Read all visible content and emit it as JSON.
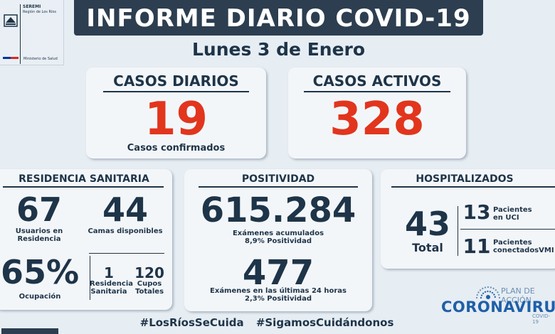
{
  "logo": {
    "seremi": "SEREMI",
    "region": "Región de Los Ríos",
    "ministry": "Ministerio de Salud"
  },
  "header": {
    "title": "INFORME DIARIO COVID-19",
    "date": "Lunes 3 de Enero"
  },
  "daily": {
    "label": "CASOS DIARIOS",
    "value": "19",
    "sub": "Casos confirmados"
  },
  "active": {
    "label": "CASOS ACTIVOS",
    "value": "328"
  },
  "residencia": {
    "title": "RESIDENCIA SANITARIA",
    "users_value": "67",
    "users_label": "Usuarios en Residencia",
    "beds_value": "44",
    "beds_label": "Camas disponibles",
    "occupancy_value": "65%",
    "occupancy_label": "Ocupación",
    "count_value": "1",
    "count_label": "Residencia Sanitaria",
    "cupos_value": "120",
    "cupos_label": "Cupos Totales"
  },
  "positividad": {
    "title": "POSITIVIDAD",
    "exams_value": "615.284",
    "exams_label_1": "Exámenes acumulados",
    "exams_label_2": "8,9% Positividad",
    "last24_value": "477",
    "last24_label_1": "Exámenes en las últimas 24 horas",
    "last24_label_2": "2,3% Positividad"
  },
  "hospitalizados": {
    "title": "HOSPITALIZADOS",
    "total_value": "43",
    "total_label": "Total",
    "uci_value": "13",
    "uci_label_1": "Pacientes",
    "uci_label_2": "en UCI",
    "vmi_value": "11",
    "vmi_label_1": "Pacientes",
    "vmi_label_2": "conectadosVMI"
  },
  "plan": {
    "label": "PLAN DE ACCIÓN",
    "name": "CORONAVIRUS",
    "sub": "COVID-19"
  },
  "hashtags": [
    "#LosRíosSeCuida",
    "#SigamosCuidándonos"
  ],
  "colors": {
    "banner": "#2c3e50",
    "text_dark": "#1e3448",
    "accent_red": "#e2351d",
    "background": "#e6edf3"
  }
}
